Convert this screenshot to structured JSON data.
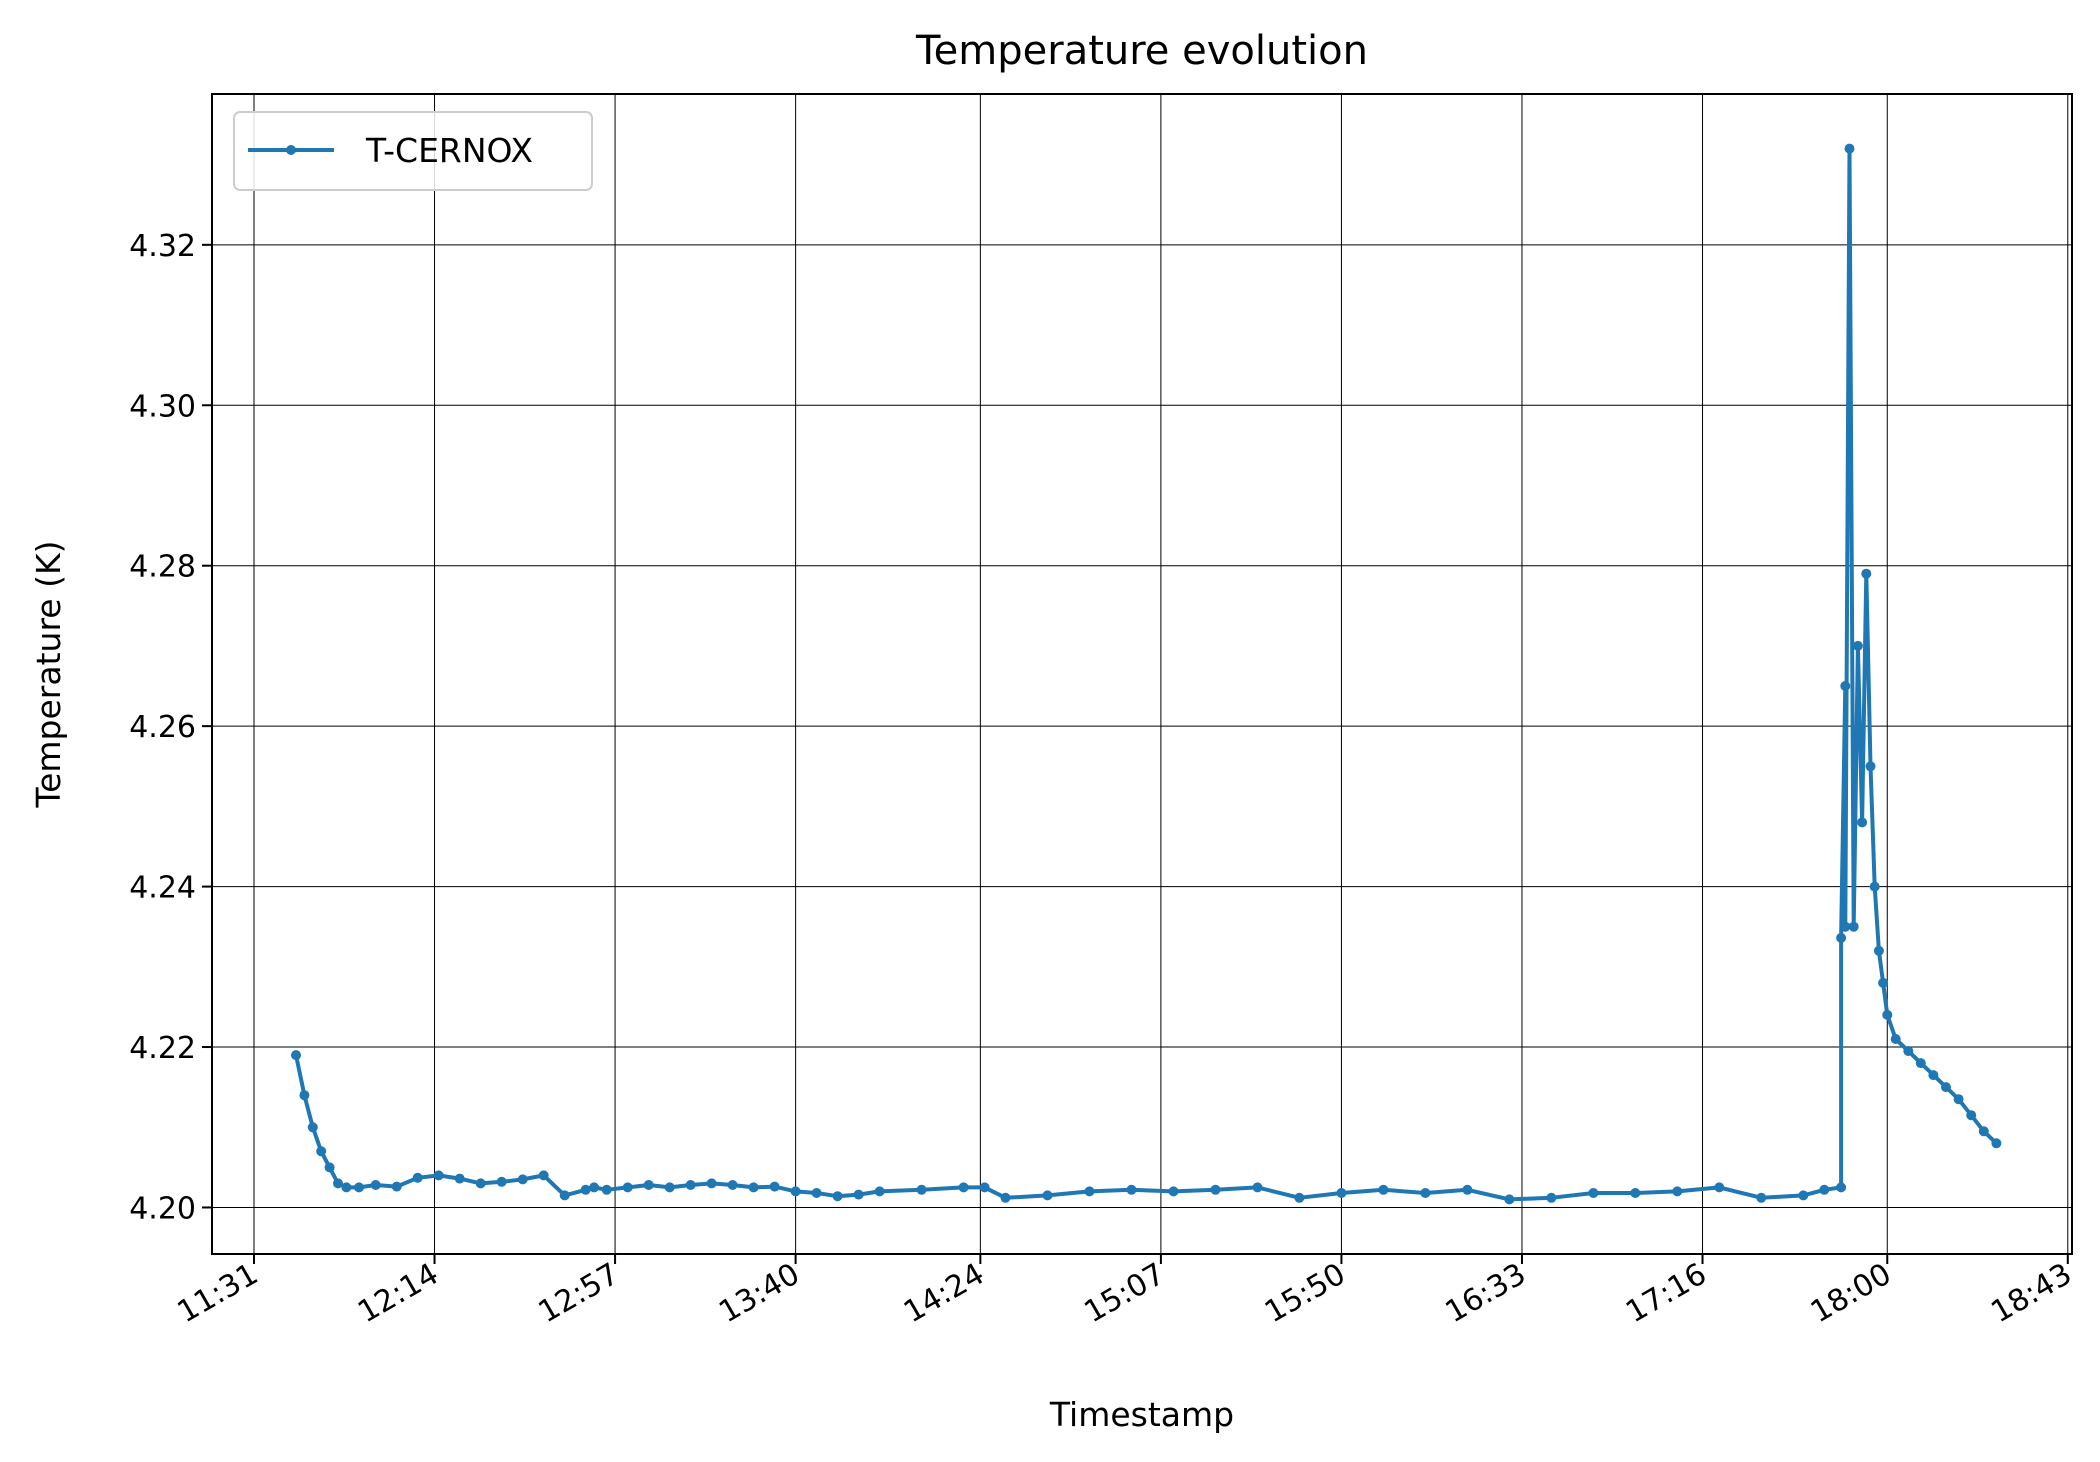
{
  "chart_data": {
    "type": "line",
    "title": "Temperature evolution",
    "xlabel": "Timestamp",
    "ylabel": "Temperature (K)",
    "x_ticks": [
      "11:31",
      "12:14",
      "12:57",
      "13:40",
      "14:24",
      "15:07",
      "15:50",
      "16:33",
      "17:16",
      "18:00",
      "18:43"
    ],
    "y_ticks": [
      "4.20",
      "4.22",
      "4.24",
      "4.26",
      "4.28",
      "4.30",
      "4.32"
    ],
    "xlim": [
      "11:21",
      "18:44"
    ],
    "ylim": [
      4.1942,
      4.3388
    ],
    "grid": true,
    "legend_position": "top-left",
    "color": "#1f77b4",
    "series": [
      {
        "name": "T-CERNOX",
        "x": [
          "11:41",
          "11:43",
          "11:45",
          "11:47",
          "11:49",
          "11:51",
          "11:53",
          "11:56",
          "12:00",
          "12:05",
          "12:10",
          "12:15",
          "12:20",
          "12:25",
          "12:30",
          "12:35",
          "12:40",
          "12:45",
          "12:50",
          "12:52",
          "12:55",
          "13:00",
          "13:05",
          "13:10",
          "13:15",
          "13:20",
          "13:25",
          "13:30",
          "13:35",
          "13:40",
          "13:45",
          "13:50",
          "13:55",
          "14:00",
          "14:10",
          "14:20",
          "14:25",
          "14:30",
          "14:40",
          "14:50",
          "15:00",
          "15:10",
          "15:20",
          "15:30",
          "15:40",
          "15:50",
          "16:00",
          "16:10",
          "16:20",
          "16:30",
          "16:40",
          "16:50",
          "17:00",
          "17:10",
          "17:20",
          "17:30",
          "17:40",
          "17:45",
          "17:49",
          "17:49",
          "17:50",
          "17:50",
          "17:51",
          "17:52",
          "17:53",
          "17:54",
          "17:55",
          "17:56",
          "17:57",
          "17:58",
          "17:59",
          "18:00",
          "18:02",
          "18:05",
          "18:08",
          "18:11",
          "18:14",
          "18:17",
          "18:20",
          "18:23",
          "18:26"
        ],
        "y": [
          4.219,
          4.214,
          4.21,
          4.207,
          4.205,
          4.203,
          4.2025,
          4.2025,
          4.2028,
          4.2026,
          4.2037,
          4.204,
          4.2036,
          4.203,
          4.2032,
          4.2035,
          4.204,
          4.2015,
          4.2022,
          4.2025,
          4.2022,
          4.2025,
          4.2028,
          4.2025,
          4.2028,
          4.203,
          4.2028,
          4.2025,
          4.2026,
          4.202,
          4.2018,
          4.2014,
          4.2016,
          4.202,
          4.2022,
          4.2025,
          4.2025,
          4.2012,
          4.2015,
          4.202,
          4.2022,
          4.202,
          4.2022,
          4.2025,
          4.2012,
          4.2018,
          4.2022,
          4.2018,
          4.2022,
          4.201,
          4.2012,
          4.2018,
          4.2018,
          4.202,
          4.2025,
          4.2012,
          4.2015,
          4.2022,
          4.2025,
          4.2336,
          4.265,
          4.235,
          4.332,
          4.235,
          4.27,
          4.248,
          4.279,
          4.255,
          4.24,
          4.232,
          4.228,
          4.224,
          4.221,
          4.2195,
          4.218,
          4.2165,
          4.215,
          4.2135,
          4.2115,
          4.2095,
          4.208
        ]
      }
    ]
  }
}
